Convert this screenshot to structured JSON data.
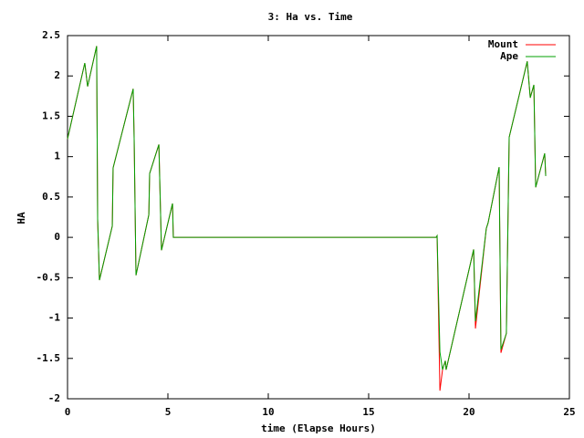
{
  "chart_data": {
    "type": "line",
    "title": "3: Ha vs. Time",
    "x_label": "time (Elapse Hours)",
    "y_label": "HA",
    "x": [
      0,
      0.86,
      1.0,
      1.45,
      1.5,
      1.59,
      2.23,
      2.27,
      3.27,
      3.32,
      3.41,
      4.05,
      4.09,
      4.55,
      4.68,
      5.23,
      5.27,
      18.36,
      18.41,
      18.55,
      18.68,
      18.82,
      18.86,
      20.23,
      20.32,
      20.86,
      20.95,
      21.5,
      21.59,
      21.86,
      22.0,
      22.9,
      23.05,
      23.23,
      23.32,
      23.77,
      23.82
    ],
    "series": [
      {
        "name": "Mount",
        "color": "#ff0000",
        "values": [
          1.22,
          2.16,
          1.87,
          2.37,
          0.23,
          -0.53,
          0.14,
          0.86,
          1.84,
          1.2,
          -0.47,
          0.28,
          0.79,
          1.15,
          -0.16,
          0.42,
          0,
          0,
          0.02,
          -1.9,
          -1.64,
          -1.53,
          -1.64,
          -0.15,
          -1.13,
          0.11,
          0.18,
          0.87,
          -1.43,
          -1.19,
          1.24,
          2.18,
          1.73,
          1.89,
          0.62,
          1.04,
          0.76
        ]
      },
      {
        "name": "Ape",
        "color": "#00a000",
        "values": [
          1.22,
          2.16,
          1.87,
          2.37,
          0.23,
          -0.53,
          0.14,
          0.86,
          1.84,
          1.2,
          -0.47,
          0.28,
          0.79,
          1.15,
          -0.16,
          0.42,
          0,
          0,
          0.02,
          -1.42,
          -1.64,
          -1.53,
          -1.64,
          -0.15,
          -1.04,
          0.11,
          0.18,
          0.87,
          -1.39,
          -1.19,
          1.24,
          2.18,
          1.73,
          1.89,
          0.62,
          1.04,
          0.76
        ]
      }
    ],
    "xlim": [
      0,
      25
    ],
    "xticks": [
      0,
      5,
      10,
      15,
      20,
      25
    ],
    "ylim": [
      -2,
      2.5
    ],
    "yticks": [
      -2,
      -1.5,
      -1,
      -0.5,
      0,
      0.5,
      1,
      1.5,
      2,
      2.5
    ],
    "grid": false,
    "legend": "top-right"
  }
}
